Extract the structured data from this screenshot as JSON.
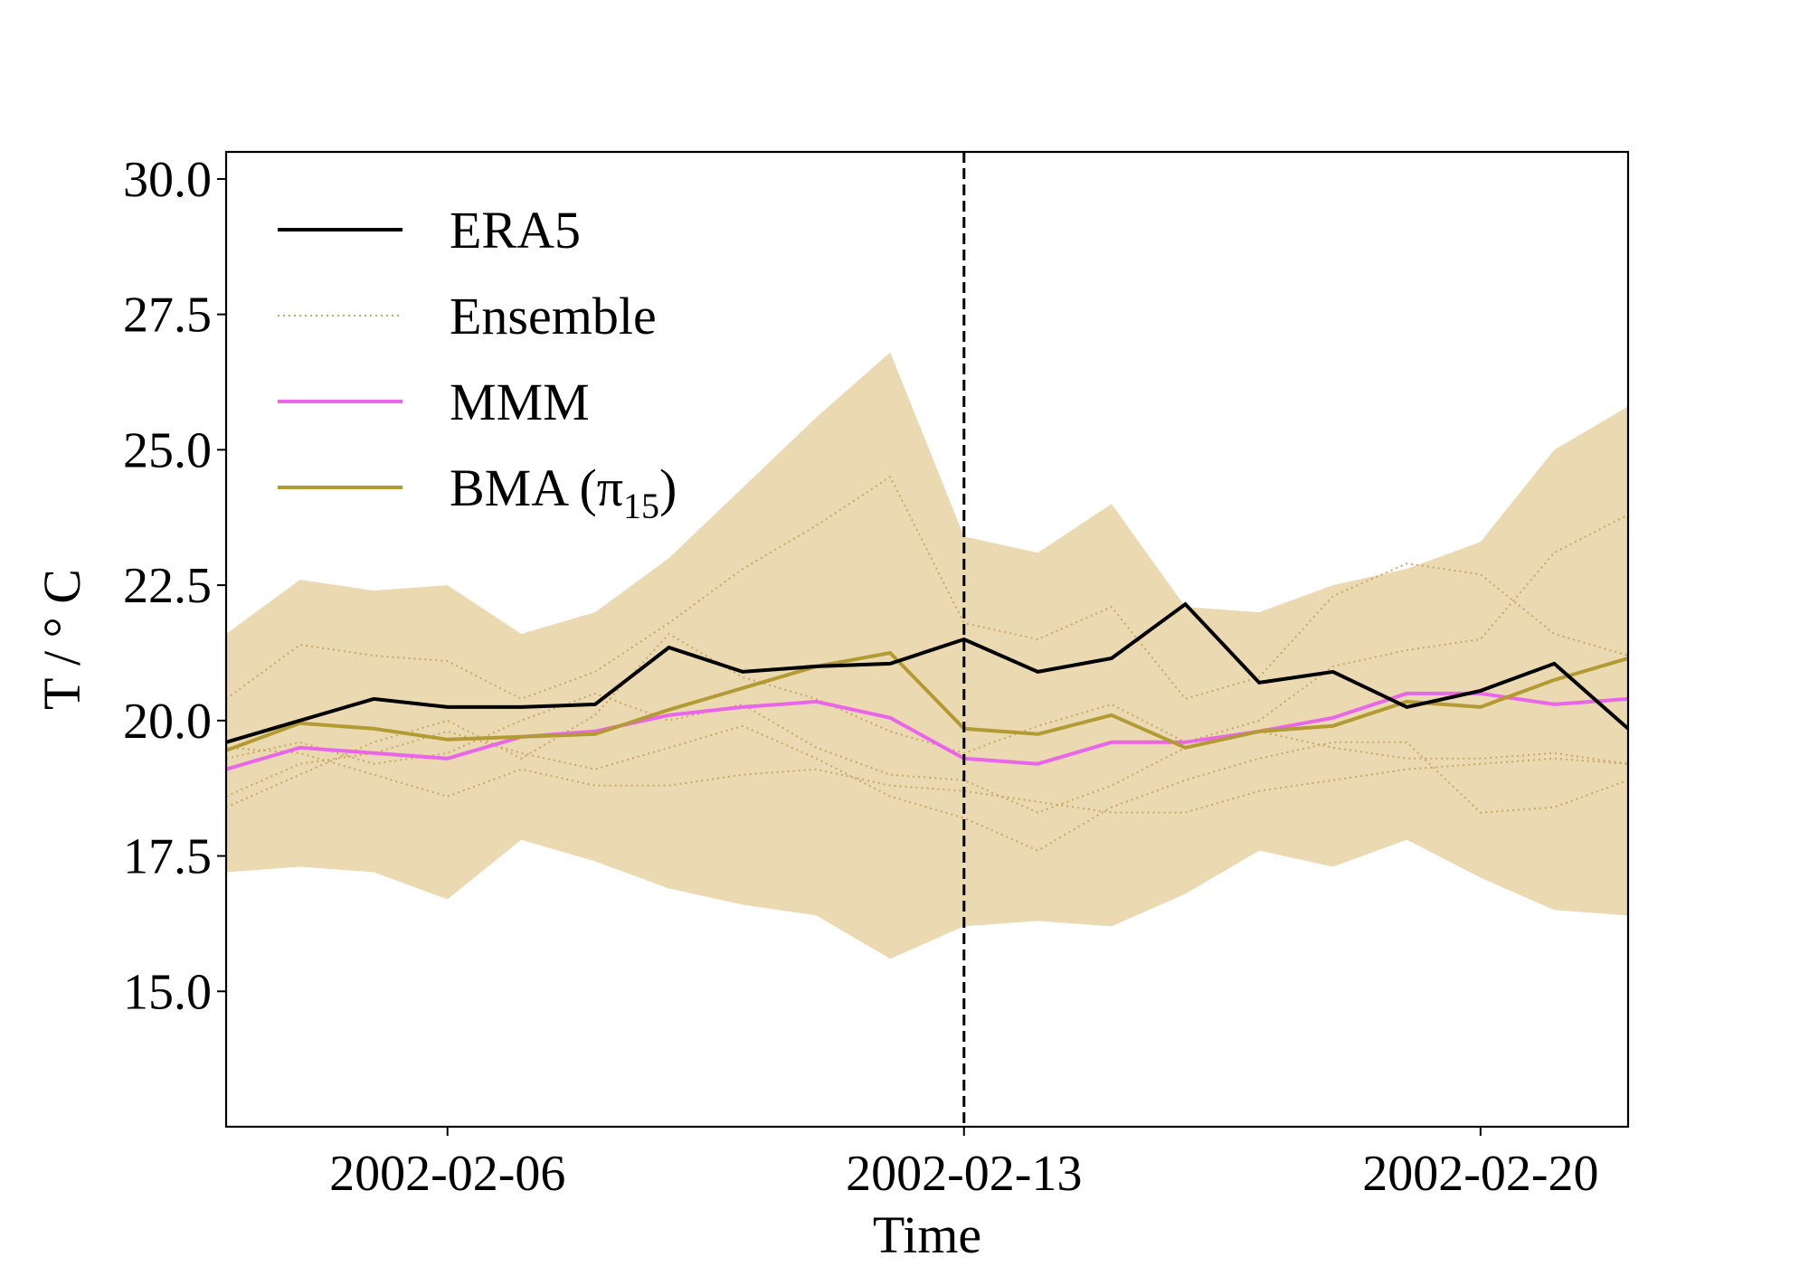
{
  "chart_data": {
    "type": "line",
    "title": "",
    "xlabel": "Time",
    "ylabel": "T / ° C",
    "ylim": [
      12.5,
      30.5
    ],
    "yticks": [
      15.0,
      17.5,
      20.0,
      22.5,
      25.0,
      27.5,
      30.0
    ],
    "ytick_labels": [
      "15.0",
      "17.5",
      "20.0",
      "22.5",
      "25.0",
      "27.5",
      "30.0"
    ],
    "x_dates": [
      "2002-02-03",
      "2002-02-04",
      "2002-02-05",
      "2002-02-06",
      "2002-02-07",
      "2002-02-08",
      "2002-02-09",
      "2002-02-10",
      "2002-02-11",
      "2002-02-12",
      "2002-02-13",
      "2002-02-14",
      "2002-02-15",
      "2002-02-16",
      "2002-02-17",
      "2002-02-18",
      "2002-02-19",
      "2002-02-20",
      "2002-02-21",
      "2002-02-22"
    ],
    "xticks": [
      {
        "index": 3,
        "label": "2002-02-06"
      },
      {
        "index": 10,
        "label": "2002-02-13"
      },
      {
        "index": 17,
        "label": "2002-02-20"
      }
    ],
    "forecast_start_index": 10,
    "ensemble_band": {
      "upper": [
        21.6,
        22.6,
        22.4,
        22.5,
        21.6,
        22.0,
        23.0,
        24.3,
        25.6,
        26.8,
        23.4,
        23.1,
        24.0,
        22.1,
        22.0,
        22.5,
        22.8,
        23.3,
        25.0,
        25.8
      ],
      "lower": [
        17.2,
        17.3,
        17.2,
        16.7,
        17.8,
        17.4,
        16.9,
        16.6,
        16.4,
        15.6,
        16.2,
        16.3,
        16.2,
        16.8,
        17.6,
        17.3,
        17.8,
        17.1,
        16.5,
        16.4
      ]
    },
    "series": [
      {
        "name": "ERA5",
        "color": "#000000",
        "values": [
          19.6,
          20.0,
          20.4,
          20.25,
          20.25,
          20.3,
          21.35,
          20.9,
          21.0,
          21.05,
          21.5,
          20.9,
          21.15,
          22.15,
          20.7,
          20.9,
          20.25,
          20.55,
          21.05,
          19.85
        ]
      },
      {
        "name": "Ensemble",
        "color": "#c8a868",
        "style": "dotted",
        "members": [
          [
            20.4,
            21.4,
            21.2,
            21.1,
            20.4,
            20.9,
            21.8,
            22.8,
            23.6,
            24.5,
            21.8,
            21.5,
            22.1,
            20.4,
            20.8,
            22.3,
            22.9,
            22.7,
            21.6,
            21.2
          ],
          [
            18.4,
            19.0,
            19.6,
            20.0,
            19.3,
            20.1,
            21.6,
            20.8,
            20.4,
            19.8,
            19.4,
            19.9,
            20.3,
            19.6,
            20.0,
            21.0,
            21.3,
            21.5,
            23.1,
            23.8
          ],
          [
            19.3,
            19.6,
            19.2,
            19.4,
            20.0,
            20.5,
            20.0,
            20.3,
            19.5,
            19.0,
            18.9,
            18.3,
            18.8,
            19.5,
            19.8,
            19.5,
            19.3,
            19.3,
            19.4,
            19.2
          ],
          [
            18.6,
            19.2,
            19.4,
            19.8,
            19.4,
            19.1,
            19.5,
            19.9,
            19.3,
            18.6,
            18.2,
            17.6,
            18.4,
            18.9,
            19.3,
            19.6,
            19.6,
            18.3,
            18.4,
            18.9
          ],
          [
            19.5,
            19.4,
            19.0,
            18.6,
            19.1,
            18.8,
            18.8,
            19.0,
            19.1,
            18.8,
            18.7,
            18.5,
            18.3,
            18.3,
            18.7,
            18.9,
            19.1,
            19.2,
            19.3,
            19.2
          ]
        ]
      },
      {
        "name": "MMM",
        "color": "#e965e9",
        "values": [
          19.1,
          19.5,
          19.4,
          19.3,
          19.7,
          19.8,
          20.1,
          20.25,
          20.35,
          20.05,
          19.3,
          19.2,
          19.6,
          19.6,
          19.8,
          20.05,
          20.5,
          20.5,
          20.3,
          20.4
        ]
      },
      {
        "name": "BMA (π₁₅)",
        "color": "#b39b34",
        "values": [
          19.45,
          19.95,
          19.85,
          19.65,
          19.7,
          19.75,
          20.2,
          20.6,
          21.0,
          21.25,
          19.85,
          19.75,
          20.1,
          19.5,
          19.8,
          19.9,
          20.35,
          20.25,
          20.75,
          21.15
        ]
      }
    ],
    "legend": {
      "placement": "top-left",
      "entries": [
        {
          "label": "ERA5"
        },
        {
          "label": "Ensemble"
        },
        {
          "label": "MMM"
        },
        {
          "label": "BMA (π",
          "subscript": "15",
          "suffix": ")"
        }
      ]
    },
    "colors": {
      "band": "#ead9b1",
      "ensemble": "#c8a868",
      "frame": "#000000",
      "divider": "#000000"
    }
  }
}
